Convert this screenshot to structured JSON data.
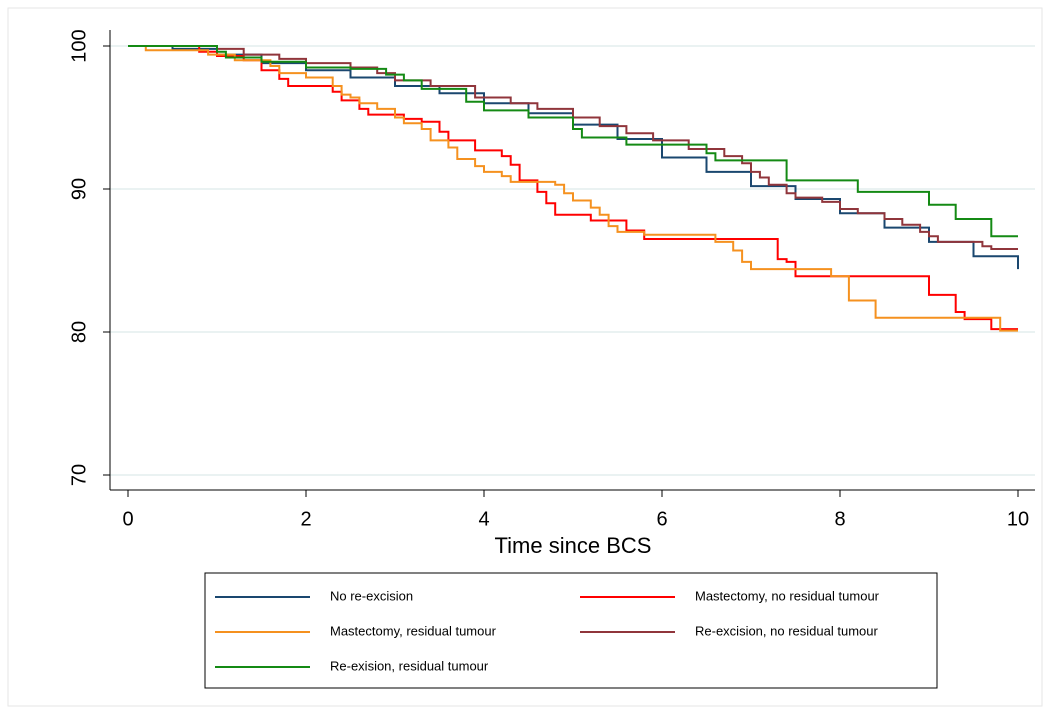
{
  "chart_data": {
    "type": "step",
    "x_label": "Time since BCS",
    "xlim": [
      0,
      10
    ],
    "xticks": [
      0,
      2,
      4,
      6,
      8,
      10
    ],
    "ylim": [
      70,
      100
    ],
    "yticks": [
      70,
      80,
      90,
      100
    ],
    "grid": true,
    "series": [
      {
        "name": "No re-excision",
        "color": "#1a476f",
        "x": [
          0,
          0.5,
          1,
          1.5,
          2,
          2.5,
          3,
          3.5,
          4,
          4.5,
          5,
          5.5,
          6,
          6.5,
          7,
          7.5,
          8,
          8.5,
          9,
          9.5,
          10
        ],
        "values": [
          100,
          99.8,
          99.4,
          98.8,
          98.3,
          97.8,
          97.2,
          96.7,
          96,
          95.3,
          94.5,
          93.5,
          92.2,
          91.2,
          90.2,
          89.3,
          88.3,
          87.3,
          86.3,
          85.3,
          84.4
        ]
      },
      {
        "name": "Mastectomy, no residual tumour",
        "color": "#ff0000",
        "x": [
          0,
          0.8,
          1,
          1.3,
          1.5,
          1.7,
          1.8,
          2.3,
          2.4,
          2.6,
          2.7,
          3.1,
          3.3,
          3.5,
          3.6,
          3.9,
          4.2,
          4.3,
          4.4,
          4.6,
          4.7,
          4.8,
          5.2,
          5.6,
          5.8,
          7.3,
          7.4,
          7.5,
          9.0,
          9.3,
          9.4,
          9.7,
          10
        ],
        "values": [
          100,
          99.6,
          99.3,
          99,
          98.3,
          97.7,
          97.2,
          96.8,
          96.2,
          95.6,
          95.2,
          94.9,
          94.7,
          94,
          93.4,
          92.7,
          92.3,
          91.7,
          90.6,
          89.8,
          89,
          88.2,
          87.8,
          87.1,
          86.5,
          85.1,
          84.9,
          83.9,
          82.6,
          81.4,
          80.9,
          80.2,
          80.2
        ]
      },
      {
        "name": "Mastectomy, residual tumour",
        "color": "#f5911f",
        "x": [
          0,
          0.2,
          0.9,
          1.2,
          1.6,
          1.7,
          2,
          2.3,
          2.4,
          2.5,
          2.6,
          2.8,
          3,
          3.1,
          3.3,
          3.4,
          3.6,
          3.7,
          3.9,
          4,
          4.2,
          4.3,
          4.8,
          4.9,
          5,
          5.2,
          5.3,
          5.4,
          5.5,
          5.8,
          6.6,
          6.8,
          6.9,
          7,
          7.9,
          8.1,
          8.4,
          9.8,
          10
        ],
        "values": [
          100,
          99.7,
          99.4,
          99,
          98.6,
          98.1,
          97.8,
          97.2,
          96.6,
          96.4,
          96,
          95.6,
          95,
          94.6,
          94.2,
          93.4,
          92.9,
          92.1,
          91.6,
          91.2,
          90.9,
          90.5,
          90.3,
          89.7,
          89.2,
          88.7,
          88.2,
          87.4,
          87,
          86.8,
          86.3,
          85.7,
          84.9,
          84.4,
          83.9,
          82.2,
          81,
          80.1,
          80.1
        ]
      },
      {
        "name": "Re-excision, no residual tumour",
        "color": "#90353b",
        "x": [
          0,
          1,
          1.3,
          1.7,
          2,
          2.5,
          2.8,
          3,
          3.4,
          3.9,
          4.3,
          4.6,
          5,
          5.3,
          5.6,
          5.9,
          6.3,
          6.7,
          6.9,
          7,
          7.1,
          7.2,
          7.4,
          7.5,
          7.8,
          8,
          8.2,
          8.5,
          8.7,
          8.9,
          9,
          9.1,
          9.6,
          9.7,
          10
        ],
        "values": [
          100,
          99.8,
          99.4,
          99.1,
          98.8,
          98.5,
          98.1,
          97.6,
          97.2,
          96.4,
          96,
          95.6,
          95,
          94.4,
          93.9,
          93.4,
          92.8,
          92.3,
          91.8,
          91.2,
          90.8,
          90.3,
          89.7,
          89.4,
          89.1,
          88.6,
          88.3,
          87.9,
          87.5,
          87,
          86.7,
          86.3,
          86,
          85.8,
          85.8
        ]
      },
      {
        "name": "Re-exision, residual tumour",
        "color": "#148a14",
        "x": [
          0,
          1,
          1.1,
          1.5,
          2,
          2.5,
          2.9,
          3.1,
          3.3,
          3.8,
          4,
          4.5,
          5,
          5.1,
          5.6,
          6.5,
          6.6,
          7.4,
          8.2,
          9,
          9.3,
          9.7,
          10
        ],
        "values": [
          100,
          99.6,
          99.2,
          98.9,
          98.5,
          98.4,
          98,
          97.6,
          97,
          96.1,
          95.5,
          95,
          94.2,
          93.6,
          93.1,
          92.5,
          92,
          90.6,
          89.8,
          88.9,
          87.9,
          86.7,
          86.7
        ]
      }
    ]
  }
}
